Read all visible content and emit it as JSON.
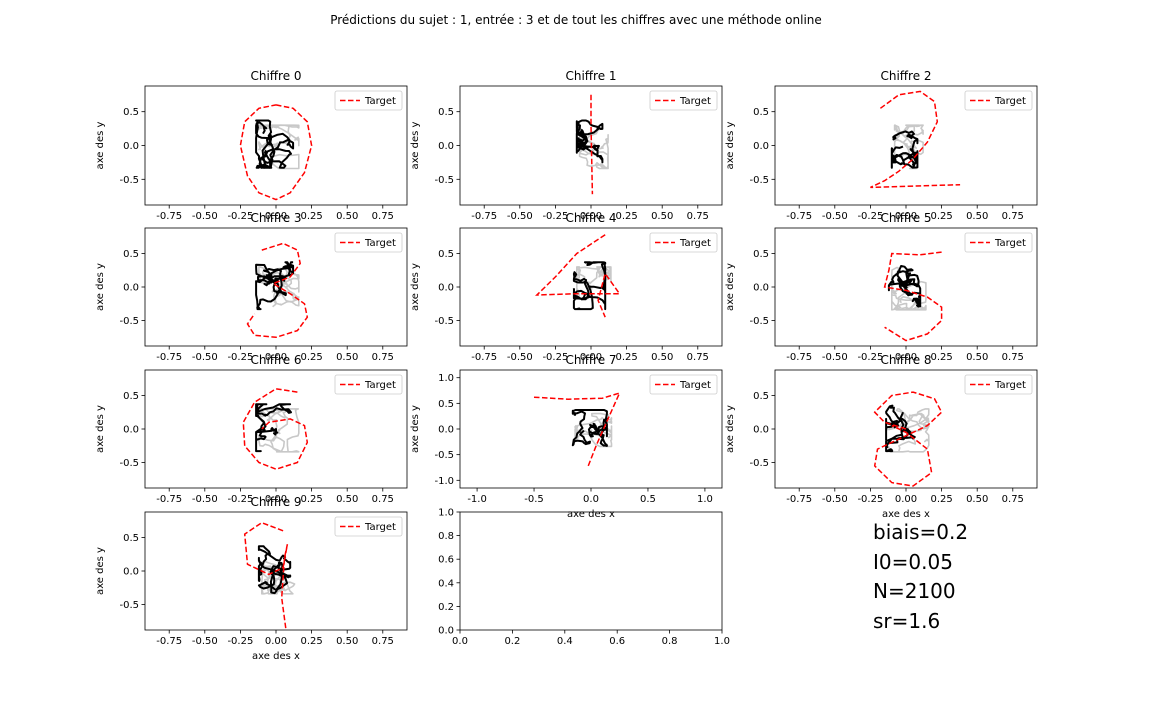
{
  "title": "Prédictions du sujet : 1, entrée : 3 et de tout les chiffres avec une méthode online",
  "legend_label": "Target",
  "xlabel": "axe des x",
  "ylabel": "axe des y",
  "colors": {
    "target": "#ff0000",
    "prediction": "#000000",
    "prediction_alt": "#c8c8c8"
  },
  "params": [
    "biais=0.2",
    "I0=0.05",
    "N=2100",
    "sr=1.6"
  ],
  "chart_data": [
    {
      "type": "line",
      "title": "Chiffre 0",
      "xlim": [
        -0.92,
        0.92
      ],
      "ylim": [
        -0.88,
        0.88
      ],
      "xticks": [
        "-0.75",
        "-0.50",
        "-0.25",
        "0.00",
        "0.25",
        "0.50",
        "0.75"
      ],
      "xtick_values": [
        -0.75,
        -0.5,
        -0.25,
        0,
        0.25,
        0.5,
        0.75
      ],
      "yticks": [
        "0.5",
        "0.0",
        "-0.5"
      ],
      "ytick_values": [
        0.5,
        0,
        -0.5
      ],
      "legend": "top-right",
      "target": {
        "x": [
          0.0,
          0.12,
          0.22,
          0.25,
          0.2,
          0.1,
          0.0,
          -0.12,
          -0.2,
          -0.25,
          -0.22,
          -0.12,
          0.0
        ],
        "y": [
          0.6,
          0.55,
          0.35,
          0.0,
          -0.4,
          -0.7,
          -0.8,
          -0.7,
          -0.45,
          0.0,
          0.35,
          0.55,
          0.6
        ]
      }
    },
    {
      "type": "line",
      "title": "Chiffre 1",
      "xlim": [
        -0.92,
        0.92
      ],
      "ylim": [
        -0.88,
        0.88
      ],
      "xticks": [
        "-0.75",
        "-0.50",
        "-0.25",
        "0.00",
        "0.25",
        "0.50",
        "0.75"
      ],
      "xtick_values": [
        -0.75,
        -0.5,
        -0.25,
        0,
        0.25,
        0.5,
        0.75
      ],
      "yticks": [
        "0.5",
        "0.0",
        "-0.5"
      ],
      "ytick_values": [
        0.5,
        0,
        -0.5
      ],
      "legend": "top-right",
      "target": {
        "x": [
          0.0,
          0.0,
          0.005,
          0.01
        ],
        "y": [
          0.75,
          0.3,
          -0.2,
          -0.72
        ]
      }
    },
    {
      "type": "line",
      "title": "Chiffre 2",
      "xlim": [
        -0.92,
        0.92
      ],
      "ylim": [
        -0.88,
        0.88
      ],
      "xticks": [
        "-0.75",
        "-0.50",
        "-0.25",
        "0.00",
        "0.25",
        "0.50",
        "0.75"
      ],
      "xtick_values": [
        -0.75,
        -0.5,
        -0.25,
        0,
        0.25,
        0.5,
        0.75
      ],
      "yticks": [
        "0.5",
        "0.0",
        "-0.5"
      ],
      "ytick_values": [
        0.5,
        0,
        -0.5
      ],
      "legend": "top-right",
      "target": {
        "x": [
          -0.18,
          -0.05,
          0.1,
          0.2,
          0.22,
          0.15,
          0.05,
          -0.05,
          -0.15,
          -0.25,
          0.05,
          0.38
        ],
        "y": [
          0.55,
          0.75,
          0.8,
          0.65,
          0.35,
          0.05,
          -0.2,
          -0.38,
          -0.52,
          -0.62,
          -0.6,
          -0.58
        ]
      }
    },
    {
      "type": "line",
      "title": "Chiffre 3",
      "xlim": [
        -0.92,
        0.92
      ],
      "ylim": [
        -0.88,
        0.88
      ],
      "xticks": [
        "-0.75",
        "-0.50",
        "-0.25",
        "0.00",
        "0.25",
        "0.50",
        "0.75"
      ],
      "xtick_values": [
        -0.75,
        -0.5,
        -0.25,
        0,
        0.25,
        0.5,
        0.75
      ],
      "yticks": [
        "0.5",
        "0.0",
        "-0.5"
      ],
      "ytick_values": [
        0.5,
        0,
        -0.5
      ],
      "legend": "top-right",
      "target": {
        "x": [
          -0.1,
          0.05,
          0.15,
          0.17,
          0.1,
          -0.02,
          0.1,
          0.2,
          0.22,
          0.15,
          0.0,
          -0.15,
          -0.2,
          -0.15
        ],
        "y": [
          0.55,
          0.65,
          0.55,
          0.35,
          0.15,
          0.05,
          -0.1,
          -0.25,
          -0.45,
          -0.65,
          -0.75,
          -0.72,
          -0.55,
          -0.4
        ]
      }
    },
    {
      "type": "line",
      "title": "Chiffre 4",
      "xlim": [
        -0.92,
        0.92
      ],
      "ylim": [
        -0.88,
        0.88
      ],
      "xticks": [
        "-0.75",
        "-0.50",
        "-0.25",
        "0.00",
        "0.25",
        "0.50",
        "0.75"
      ],
      "xtick_values": [
        -0.75,
        -0.5,
        -0.25,
        0,
        0.25,
        0.5,
        0.75
      ],
      "yticks": [
        "0.5",
        "0.0",
        "-0.5"
      ],
      "ytick_values": [
        0.5,
        0,
        -0.5
      ],
      "legend": "top-right",
      "target": {
        "x": [
          0.1,
          -0.1,
          -0.25,
          -0.38,
          -0.1,
          0.2,
          0.1,
          0.05,
          0.1
        ],
        "y": [
          0.78,
          0.5,
          0.15,
          -0.12,
          -0.1,
          -0.1,
          0.2,
          -0.2,
          -0.45
        ]
      }
    },
    {
      "type": "line",
      "title": "Chiffre 5",
      "xlim": [
        -0.92,
        0.92
      ],
      "ylim": [
        -0.88,
        0.88
      ],
      "xticks": [
        "-0.75",
        "-0.50",
        "-0.25",
        "0.00",
        "0.25",
        "0.50",
        "0.75"
      ],
      "xtick_values": [
        -0.75,
        -0.5,
        -0.25,
        0,
        0.25,
        0.5,
        0.75
      ],
      "yticks": [
        "0.5",
        "0.0",
        "-0.5"
      ],
      "ytick_values": [
        0.5,
        0,
        -0.5
      ],
      "legend": "top-right",
      "target": {
        "x": [
          0.25,
          0.1,
          -0.1,
          -0.12,
          -0.15,
          0.0,
          0.15,
          0.25,
          0.25,
          0.15,
          0.0,
          -0.15
        ],
        "y": [
          0.52,
          0.48,
          0.5,
          0.25,
          0.0,
          -0.05,
          -0.15,
          -0.3,
          -0.5,
          -0.7,
          -0.8,
          -0.6
        ]
      }
    },
    {
      "type": "line",
      "title": "Chiffre 6",
      "xlim": [
        -0.92,
        0.92
      ],
      "ylim": [
        -0.88,
        0.88
      ],
      "xticks": [
        "-0.75",
        "-0.50",
        "-0.25",
        "0.00",
        "0.25",
        "0.50",
        "0.75"
      ],
      "xtick_values": [
        -0.75,
        -0.5,
        -0.25,
        0,
        0.25,
        0.5,
        0.75
      ],
      "yticks": [
        "0.5",
        "0.0",
        "-0.5"
      ],
      "ytick_values": [
        0.5,
        0,
        -0.5
      ],
      "legend": "top-right",
      "target": {
        "x": [
          0.15,
          0.0,
          -0.15,
          -0.23,
          -0.22,
          -0.12,
          0.0,
          0.15,
          0.22,
          0.2,
          0.1,
          -0.05,
          -0.1
        ],
        "y": [
          0.55,
          0.6,
          0.4,
          0.1,
          -0.25,
          -0.5,
          -0.6,
          -0.5,
          -0.2,
          0.05,
          0.15,
          0.1,
          0.0
        ]
      }
    },
    {
      "type": "line",
      "title": "Chiffre 7",
      "xlim": [
        -1.15,
        1.15
      ],
      "ylim": [
        -1.15,
        1.15
      ],
      "xticks": [
        "-1.0",
        "-0.5",
        "0.0",
        "0.5",
        "1.0"
      ],
      "xtick_values": [
        -1,
        -0.5,
        0,
        0.5,
        1
      ],
      "yticks": [
        "1.0",
        "0.5",
        "0.0",
        "-0.5",
        "-1.0"
      ],
      "ytick_values": [
        1,
        0.5,
        0,
        -0.5,
        -1
      ],
      "legend": "top-right",
      "target": {
        "x": [
          -0.5,
          -0.2,
          0.1,
          0.25,
          0.15,
          0.05,
          -0.03
        ],
        "y": [
          0.62,
          0.58,
          0.6,
          0.7,
          0.2,
          -0.3,
          -0.75
        ]
      }
    },
    {
      "type": "line",
      "title": "Chiffre 8",
      "xlim": [
        -0.92,
        0.92
      ],
      "ylim": [
        -0.88,
        0.88
      ],
      "xticks": [
        "-0.75",
        "-0.50",
        "-0.25",
        "0.00",
        "0.25",
        "0.50",
        "0.75"
      ],
      "xtick_values": [
        -0.75,
        -0.5,
        -0.25,
        0,
        0.25,
        0.5,
        0.75
      ],
      "yticks": [
        "0.5",
        "0.0",
        "-0.5"
      ],
      "ytick_values": [
        0.5,
        0,
        -0.5
      ],
      "legend": "top-right",
      "target": {
        "x": [
          0.0,
          -0.15,
          -0.22,
          -0.1,
          0.05,
          0.2,
          0.25,
          0.15,
          -0.05,
          -0.2,
          -0.22,
          -0.1,
          0.05,
          0.18,
          0.15,
          0.0,
          -0.1
        ],
        "y": [
          0.0,
          0.1,
          0.25,
          0.5,
          0.55,
          0.45,
          0.25,
          0.05,
          -0.15,
          -0.3,
          -0.55,
          -0.8,
          -0.85,
          -0.65,
          -0.3,
          -0.05,
          0.05
        ]
      }
    },
    {
      "type": "line",
      "title": "Chiffre 9",
      "xlim": [
        -0.92,
        0.92
      ],
      "ylim": [
        -0.88,
        0.88
      ],
      "xticks": [
        "-0.75",
        "-0.50",
        "-0.25",
        "0.00",
        "0.25",
        "0.50",
        "0.75"
      ],
      "xtick_values": [
        -0.75,
        -0.5,
        -0.25,
        0,
        0.25,
        0.5,
        0.75
      ],
      "yticks": [
        "0.5",
        "0.0",
        "-0.5"
      ],
      "ytick_values": [
        0.5,
        0,
        -0.5
      ],
      "legend": "top-right",
      "target": {
        "x": [
          0.05,
          -0.1,
          -0.22,
          -0.2,
          -0.05,
          0.05,
          0.08,
          0.06,
          0.04,
          0.07
        ],
        "y": [
          0.6,
          0.72,
          0.55,
          0.1,
          -0.05,
          0.05,
          0.4,
          0.2,
          -0.4,
          -0.88
        ]
      }
    },
    {
      "type": "line",
      "title": "",
      "xlim": [
        0,
        1
      ],
      "ylim": [
        0,
        1
      ],
      "xticks": [
        "0.0",
        "0.2",
        "0.4",
        "0.6",
        "0.8",
        "1.0"
      ],
      "xtick_values": [
        0,
        0.2,
        0.4,
        0.6,
        0.8,
        1
      ],
      "yticks": [
        "0.0",
        "0.2",
        "0.4",
        "0.6",
        "0.8",
        "1.0"
      ],
      "ytick_values": [
        0,
        0.2,
        0.4,
        0.6,
        0.8,
        1
      ]
    }
  ]
}
